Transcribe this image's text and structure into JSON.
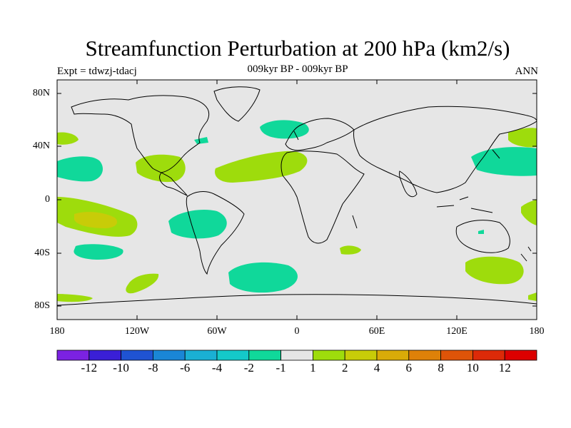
{
  "title": "Streamfunction Perturbation at 200 hPa (km2/s)",
  "subtitle": "009kyr BP - 009kyr BP",
  "left_label": "Expt = tdwzj-tdacj",
  "right_label": "ANN",
  "lat_ticks": [
    "80N",
    "40N",
    "0",
    "40S",
    "80S"
  ],
  "lon_ticks": [
    "180",
    "120W",
    "60W",
    "0",
    "60E",
    "120E",
    "180"
  ],
  "colorbar": {
    "labels": [
      "-12",
      "-10",
      "-8",
      "-6",
      "-4",
      "-2",
      "-1",
      "1",
      "2",
      "4",
      "6",
      "8",
      "10",
      "12"
    ],
    "colors": [
      "#7b22e2",
      "#3a1fd6",
      "#1f53d3",
      "#1a86d6",
      "#1ab0d4",
      "#14c9c9",
      "#10d89a",
      "#e6e6e6",
      "#9edc0c",
      "#c8cc08",
      "#d9ab08",
      "#de8108",
      "#de5408",
      "#dc2a08",
      "#dc0000"
    ]
  },
  "map": {
    "background": "#e6e6e6",
    "projection": "cylindrical-equidistant",
    "lon_range": [
      -180,
      180
    ],
    "lat_range": [
      -90,
      90
    ]
  }
}
